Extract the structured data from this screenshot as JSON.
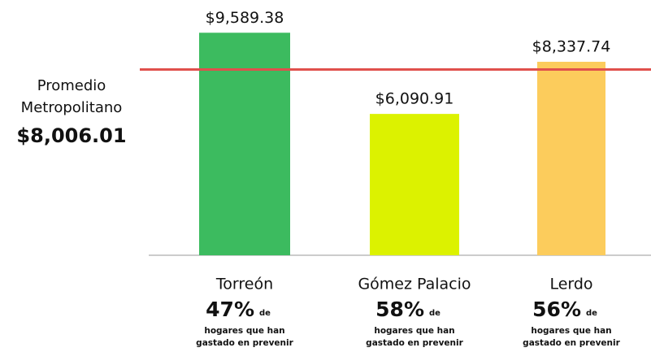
{
  "chart_data": {
    "type": "bar",
    "categories": [
      "Torreón",
      "Gómez Palacio",
      "Lerdo"
    ],
    "values": [
      9589.38,
      6090.91,
      8337.74
    ],
    "value_labels": [
      "$9,589.38",
      "$6,090.91",
      "$8,337.74"
    ],
    "colors": [
      "#3cbb5f",
      "#dcf200",
      "#fccc5c"
    ],
    "ylim": [
      0,
      11000
    ],
    "reference": {
      "label": [
        "Promedio",
        "Metropolitano"
      ],
      "value": 8006.01,
      "value_label": "$8,006.01",
      "color": "#e0504c"
    },
    "notes": [
      {
        "share": "47%",
        "unit": "de",
        "text": [
          "hogares que han",
          "gastado en prevenir"
        ]
      },
      {
        "share": "58%",
        "unit": "de",
        "text": [
          "hogares que han",
          "gastado en prevenir"
        ]
      },
      {
        "share": "56%",
        "unit": "de",
        "text": [
          "hogares que han",
          "gastado en prevenir"
        ]
      }
    ]
  }
}
